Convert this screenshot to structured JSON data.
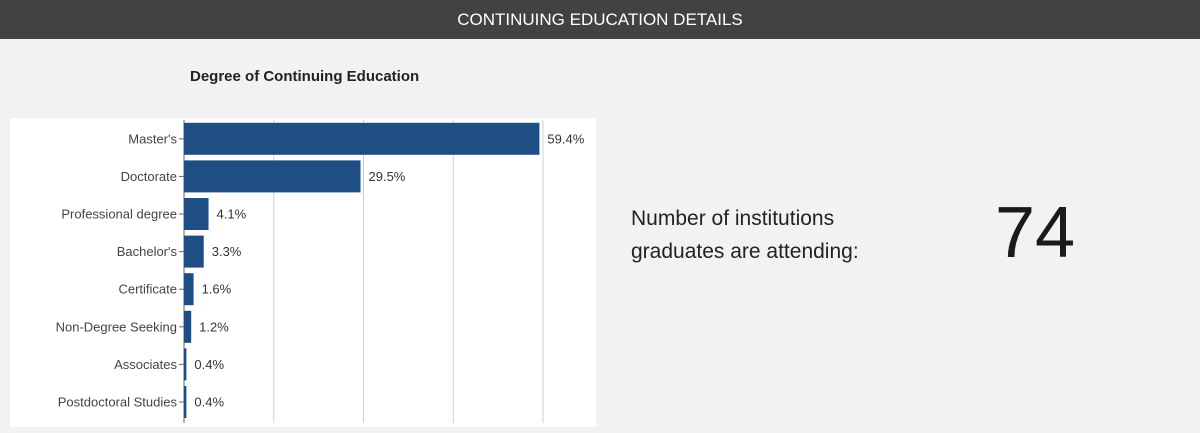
{
  "header": {
    "title": "CONTINUING EDUCATION DETAILS"
  },
  "chart_data": {
    "type": "bar",
    "orientation": "horizontal",
    "title": "Degree of Continuing Education",
    "xlabel": "",
    "ylabel": "",
    "categories": [
      "Master's",
      "Doctorate",
      "Professional degree",
      "Bachelor's",
      "Certificate",
      "Non-Degree Seeking",
      "Associates",
      "Postdoctoral Studies"
    ],
    "values": [
      59.4,
      29.5,
      4.1,
      3.3,
      1.6,
      1.2,
      0.4,
      0.4
    ],
    "data_labels": [
      "59.4%",
      "29.5%",
      "4.1%",
      "3.3%",
      "1.6%",
      "1.2%",
      "0.4%",
      "0.4%"
    ],
    "xlim": [
      0,
      60
    ],
    "grid": "vertical",
    "bar_color": "#1f4e85"
  },
  "stat": {
    "label": "Number of institutions graduates are attending:",
    "value": "74"
  }
}
